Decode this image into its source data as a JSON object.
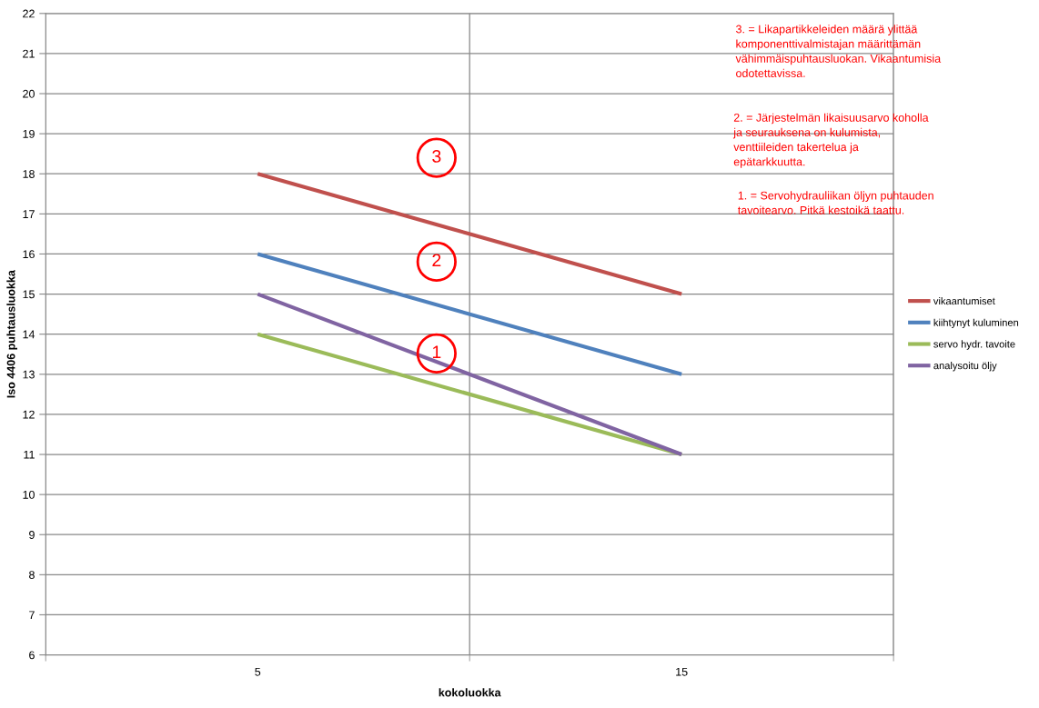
{
  "chart_data": {
    "type": "line",
    "xlabel": "kokoluokka",
    "ylabel": "Iso 4406 puhtausluokka",
    "categories": [
      "5",
      "15"
    ],
    "series": [
      {
        "name": "vikaantumiset",
        "color": "#c0504d",
        "values": [
          18,
          15
        ]
      },
      {
        "name": "kiihtynyt kuluminen",
        "color": "#4f81bd",
        "values": [
          16,
          13
        ]
      },
      {
        "name": "servo hydr. tavoite",
        "color": "#9bbb59",
        "values": [
          14,
          11
        ]
      },
      {
        "name": "analysoitu öljy",
        "color": "#8064a2",
        "values": [
          15,
          11
        ]
      }
    ],
    "ylim": [
      6,
      22
    ],
    "yticks": [
      6,
      7,
      8,
      9,
      10,
      11,
      12,
      13,
      14,
      15,
      16,
      17,
      18,
      19,
      20,
      21,
      22
    ],
    "grid": true,
    "legend": "right",
    "marker": "none",
    "line_style": "solid",
    "annotations": [
      "3",
      "2",
      "1",
      "3. = Likapartikkeleiden määrä ylittää komponenttivalmistajan määrittämän vähimmäispuhtausluokan. Vikaantumisia odotettavissa.",
      "2. = Järjestelmän likaisuusarvo koholla ja seurauksena on kulumista, venttiileiden takertelua ja epätarkkuutta.",
      "1. = Servohydrauliikan öljyn puhtauden tavoitearvo. Pitkä kestoikä taattu."
    ]
  }
}
